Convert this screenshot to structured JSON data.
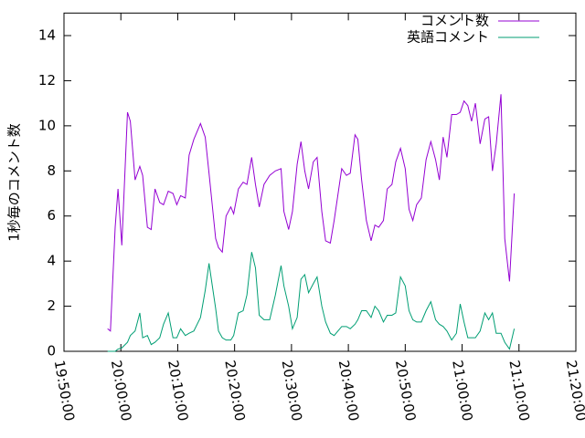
{
  "chart_data": {
    "type": "line",
    "ylabel": "1秒毎のコメント数",
    "x": [
      "19:57:40",
      "19:58:10",
      "19:59:00",
      "19:59:30",
      "20:00:10",
      "20:01:10",
      "20:01:40",
      "20:02:30",
      "20:03:20",
      "20:03:50",
      "20:04:40",
      "20:05:20",
      "20:06:00",
      "20:06:50",
      "20:07:30",
      "20:08:20",
      "20:09:10",
      "20:09:50",
      "20:10:30",
      "20:11:20",
      "20:12:00",
      "20:12:50",
      "20:14:00",
      "20:14:50",
      "20:15:30",
      "20:16:40",
      "20:17:10",
      "20:17:50",
      "20:18:30",
      "20:19:20",
      "20:19:50",
      "20:20:40",
      "20:21:30",
      "20:22:10",
      "20:23:00",
      "20:23:40",
      "20:24:20",
      "20:25:10",
      "20:26:10",
      "20:27:10",
      "20:28:10",
      "20:28:40",
      "20:29:30",
      "20:30:10",
      "20:31:00",
      "20:31:40",
      "20:32:20",
      "20:33:00",
      "20:33:50",
      "20:34:30",
      "20:35:20",
      "20:36:00",
      "20:36:50",
      "20:37:30",
      "20:38:50",
      "20:39:40",
      "20:40:20",
      "20:41:10",
      "20:41:40",
      "20:42:20",
      "20:43:10",
      "20:44:00",
      "20:44:40",
      "20:45:20",
      "20:46:10",
      "20:46:50",
      "20:47:40",
      "20:48:20",
      "20:49:10",
      "20:50:00",
      "20:50:40",
      "20:51:20",
      "20:52:00",
      "20:52:50",
      "20:53:40",
      "20:54:30",
      "20:55:20",
      "20:56:00",
      "20:56:40",
      "20:57:20",
      "20:58:10",
      "20:59:00",
      "20:59:40",
      "21:00:20",
      "21:01:00",
      "21:01:40",
      "21:02:20",
      "21:03:10",
      "21:04:00",
      "21:04:40",
      "21:05:20",
      "21:06:00",
      "21:06:50",
      "21:07:30",
      "21:08:20",
      "21:09:10"
    ],
    "series": [
      {
        "name": "コメント数",
        "color": "#9400d3",
        "values": [
          1.0,
          0.9,
          5.5,
          7.2,
          4.7,
          10.6,
          10.2,
          7.6,
          8.2,
          7.8,
          5.5,
          5.4,
          7.2,
          6.6,
          6.5,
          7.1,
          7.0,
          6.5,
          6.9,
          6.8,
          8.7,
          9.4,
          10.1,
          9.5,
          7.9,
          5.0,
          4.6,
          4.4,
          6.0,
          6.4,
          6.1,
          7.2,
          7.5,
          7.4,
          8.6,
          7.4,
          6.4,
          7.4,
          7.8,
          8.0,
          8.1,
          6.2,
          5.4,
          6.2,
          8.3,
          9.3,
          8.0,
          7.2,
          8.4,
          8.6,
          6.2,
          4.9,
          4.8,
          5.8,
          8.1,
          7.8,
          7.9,
          9.6,
          9.4,
          7.6,
          5.8,
          4.9,
          5.6,
          5.5,
          5.8,
          7.2,
          7.4,
          8.4,
          9.0,
          8.1,
          6.3,
          5.8,
          6.5,
          6.8,
          8.5,
          9.3,
          8.5,
          7.6,
          9.5,
          8.6,
          10.5,
          10.5,
          10.6,
          11.1,
          10.9,
          10.2,
          11.0,
          9.2,
          10.3,
          10.4,
          8.0,
          9.2,
          11.4,
          5.0,
          3.1,
          7.0
        ]
      },
      {
        "name": "英語コメント",
        "color": "#009e73",
        "values": [
          0,
          0,
          0,
          0.1,
          0.15,
          0.4,
          0.7,
          0.9,
          1.7,
          0.6,
          0.7,
          0.3,
          0.4,
          0.6,
          1.2,
          1.7,
          0.6,
          0.6,
          1.0,
          0.7,
          0.8,
          0.9,
          1.5,
          2.7,
          3.9,
          1.9,
          0.9,
          0.6,
          0.5,
          0.5,
          0.7,
          1.7,
          1.8,
          2.5,
          4.4,
          3.7,
          1.6,
          1.4,
          1.4,
          2.5,
          3.8,
          2.9,
          2.0,
          1.0,
          1.5,
          3.2,
          3.4,
          2.6,
          3.0,
          3.3,
          2.0,
          1.3,
          0.8,
          0.7,
          1.1,
          1.1,
          1.0,
          1.2,
          1.4,
          1.8,
          1.8,
          1.5,
          2.0,
          1.8,
          1.3,
          1.6,
          1.6,
          1.7,
          3.3,
          2.9,
          1.8,
          1.4,
          1.3,
          1.3,
          1.8,
          2.2,
          1.4,
          1.2,
          1.1,
          0.9,
          0.5,
          0.8,
          2.1,
          1.3,
          0.6,
          0.6,
          0.6,
          0.9,
          1.7,
          1.4,
          1.7,
          0.8,
          0.8,
          0.4,
          0.1,
          1.0
        ]
      }
    ],
    "xlim": [
      "19:50:00",
      "21:20:00"
    ],
    "xticks": [
      "19:50:00",
      "20:00:00",
      "20:10:00",
      "20:20:00",
      "20:30:00",
      "20:40:00",
      "20:50:00",
      "21:00:00",
      "21:10:00",
      "21:20:00"
    ],
    "ylim": [
      0,
      15
    ],
    "yticks": [
      0,
      2,
      4,
      6,
      8,
      10,
      12,
      14
    ],
    "legend": "top-right"
  }
}
